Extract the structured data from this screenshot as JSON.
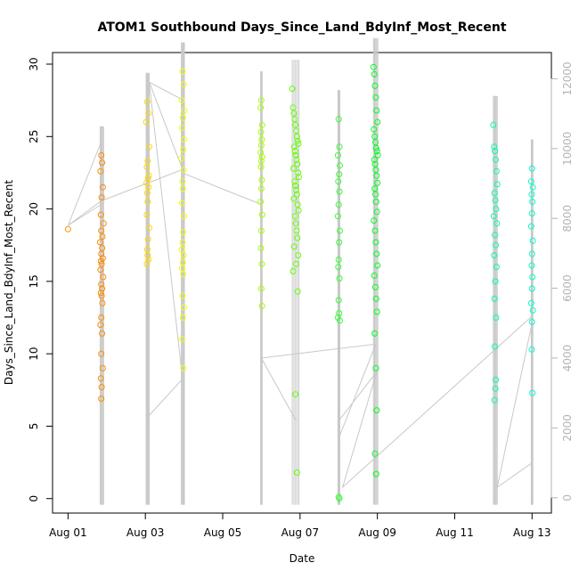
{
  "chart_data": {
    "type": "scatter",
    "title": "ATOM1 Southbound Days_Since_Land_BdyInf_Most_Recent",
    "xlabel": "Date",
    "ylabel": "Days_Since_Land_BdyInf_Most_Recent",
    "x_tick_labels": [
      "Aug 01",
      "Aug 03",
      "Aug 05",
      "Aug 07",
      "Aug 09",
      "Aug 11",
      "Aug 13"
    ],
    "x_tick_values": [
      1,
      3,
      5,
      7,
      9,
      11,
      13
    ],
    "xlim": [
      0.6,
      13.5
    ],
    "y_ticks": [
      0,
      5,
      10,
      15,
      20,
      25,
      30
    ],
    "ylim": [
      -1.0,
      30.8
    ],
    "y2_ticks": [
      0,
      2000,
      4000,
      6000,
      8000,
      10000,
      12000
    ],
    "y2lim": [
      -440,
      12750
    ],
    "grid": false,
    "legend": "none",
    "colors": {
      "aug01": "#ff8c00",
      "aug03": "#ffd700",
      "aug04": "#f2ff00",
      "aug06": "#a8ff00",
      "aug07": "#66ff00",
      "aug08": "#33ff33",
      "aug09": "#00ff22",
      "aug12": "#00ffaa",
      "aug13": "#00ffcc",
      "secondary_trace": "#c8c8c8"
    },
    "series": [
      {
        "x": [
          1.0
        ],
        "color_key": "aug01",
        "values": [
          18.6
        ]
      },
      {
        "x": [
          1.86,
          1.88,
          1.84,
          1.9,
          1.87,
          1.85,
          1.92,
          1.86,
          1.89,
          1.83,
          1.88,
          1.86,
          1.9,
          1.85,
          1.87,
          1.84,
          1.91,
          1.86,
          1.88,
          1.85,
          1.87,
          1.89,
          1.86,
          1.84,
          1.88,
          1.86,
          1.9,
          1.85,
          1.87,
          1.86
        ],
        "color_key": "aug01",
        "values": [
          23.7,
          23.2,
          22.6,
          21.5,
          20.8,
          19.6,
          19.0,
          18.5,
          18.1,
          17.7,
          17.3,
          16.9,
          16.6,
          16.4,
          16.2,
          15.8,
          15.3,
          14.8,
          14.5,
          14.2,
          14.0,
          13.5,
          12.5,
          12.0,
          11.4,
          10.0,
          9.0,
          8.3,
          7.7,
          6.9
        ]
      },
      {
        "x": [
          3.05,
          3.08,
          3.02,
          3.1,
          3.06,
          3.04,
          3.09,
          3.07,
          3.03,
          3.08,
          3.05,
          3.06,
          3.04,
          3.1,
          3.07,
          3.05,
          3.06,
          3.08,
          3.04
        ],
        "color_key": "aug03",
        "values": [
          27.4,
          26.6,
          26.0,
          24.3,
          23.3,
          22.9,
          22.3,
          22.1,
          21.8,
          21.5,
          21.1,
          20.5,
          19.6,
          18.7,
          17.9,
          17.2,
          16.8,
          16.5,
          16.2
        ]
      },
      {
        "x": [
          3.96,
          3.99,
          3.94,
          4.01,
          3.97,
          3.95,
          4.0,
          3.98,
          3.93,
          3.99,
          3.96,
          3.97,
          3.95,
          4.0,
          3.98,
          3.96,
          3.94,
          3.99,
          3.97,
          3.95,
          3.98,
          3.96,
          4.0,
          3.97,
          3.95,
          3.98
        ],
        "color_key": "aug04",
        "values": [
          29.5,
          28.6,
          27.5,
          26.8,
          26.3,
          25.6,
          24.8,
          24.1,
          23.5,
          22.7,
          21.9,
          21.4,
          20.4,
          19.5,
          18.4,
          17.7,
          17.2,
          16.8,
          16.3,
          15.9,
          15.5,
          14.0,
          13.2,
          12.5,
          11.0,
          9.0
        ]
      },
      {
        "x": [
          6.0,
          5.98,
          6.02,
          5.99,
          6.01,
          6.0,
          5.98,
          6.02,
          6.0,
          5.99,
          6.01,
          6.0,
          5.98,
          6.02,
          6.0,
          5.99,
          6.01,
          6.0,
          6.02
        ],
        "color_key": "aug06",
        "values": [
          27.5,
          27.0,
          25.8,
          25.3,
          24.8,
          24.4,
          23.9,
          23.6,
          23.3,
          22.9,
          22.0,
          21.4,
          20.5,
          19.6,
          18.5,
          17.3,
          16.2,
          14.5,
          13.3
        ]
      },
      {
        "x": [
          6.8,
          6.82,
          6.84,
          6.86,
          6.88,
          6.9,
          6.92,
          6.94,
          6.96,
          6.85,
          6.87,
          6.89,
          6.91,
          6.93,
          6.83,
          6.95,
          6.97,
          6.86,
          6.88,
          6.9,
          6.92,
          6.84,
          6.94,
          6.96,
          6.87,
          6.89,
          6.91,
          6.93,
          6.85,
          6.95,
          6.9,
          6.82,
          6.88,
          6.92,
          6.94
        ],
        "color_key": "aug07",
        "values": [
          28.3,
          27.0,
          26.6,
          26.2,
          25.8,
          25.4,
          25.0,
          24.7,
          24.5,
          24.3,
          24.0,
          23.7,
          23.4,
          23.1,
          22.8,
          22.5,
          22.2,
          21.9,
          21.6,
          21.3,
          21.0,
          20.7,
          20.3,
          19.9,
          19.5,
          19.0,
          18.5,
          18.0,
          17.4,
          16.8,
          16.2,
          15.7,
          7.2,
          1.8,
          14.3
        ]
      },
      {
        "x": [
          8.0,
          8.02,
          7.98,
          8.03,
          8.01,
          7.99,
          8.02,
          8.0,
          7.98,
          8.03,
          8.01,
          8.0,
          7.99,
          8.02,
          8.0,
          8.01,
          7.98,
          8.03,
          8.0,
          8.02
        ],
        "color_key": "aug08",
        "values": [
          26.2,
          24.3,
          23.7,
          23.0,
          22.4,
          21.9,
          21.2,
          20.3,
          19.5,
          18.5,
          17.7,
          16.5,
          16.0,
          15.2,
          13.7,
          12.8,
          12.5,
          12.3,
          0.1,
          0.0
        ]
      },
      {
        "x": [
          8.9,
          8.92,
          8.94,
          8.96,
          8.98,
          9.0,
          8.91,
          8.93,
          8.95,
          8.97,
          8.99,
          9.01,
          8.92,
          8.94,
          8.96,
          8.98,
          9.0,
          8.93,
          8.95,
          8.97,
          8.99,
          8.91,
          8.94,
          8.96,
          8.98,
          9.0,
          8.92,
          8.95,
          8.97,
          8.99,
          8.93,
          8.96,
          8.98,
          8.94,
          8.97
        ],
        "color_key": "aug09",
        "values": [
          29.8,
          29.3,
          28.5,
          27.7,
          26.8,
          26.0,
          25.5,
          25.0,
          24.6,
          24.2,
          24.0,
          23.7,
          23.4,
          23.1,
          22.7,
          22.3,
          21.8,
          21.4,
          21.0,
          20.5,
          19.8,
          19.2,
          18.5,
          17.7,
          16.9,
          16.1,
          15.4,
          14.6,
          13.8,
          12.9,
          11.4,
          9.0,
          6.1,
          3.1,
          1.7
        ]
      },
      {
        "x": [
          12.0,
          12.02,
          12.04,
          12.06,
          12.08,
          12.1,
          12.03,
          12.05,
          12.07,
          12.01,
          12.09,
          12.04,
          12.06,
          12.02,
          12.08,
          12.05,
          12.03,
          12.07,
          12.04,
          12.06,
          12.05,
          12.03
        ],
        "color_key": "aug12",
        "values": [
          25.8,
          24.3,
          24.0,
          23.4,
          22.6,
          21.7,
          21.1,
          20.6,
          20.0,
          19.5,
          19.0,
          18.2,
          17.5,
          16.8,
          16.0,
          15.0,
          13.8,
          12.5,
          10.5,
          8.2,
          7.6,
          6.8
        ]
      },
      {
        "x": [
          13.0,
          12.98,
          13.02,
          12.99,
          13.01,
          13.0,
          12.98,
          13.02,
          13.0,
          12.99,
          13.01,
          13.0,
          12.98,
          13.02,
          13.0,
          12.99,
          13.01
        ],
        "color_key": "aug13",
        "values": [
          22.8,
          21.9,
          21.5,
          21.0,
          20.5,
          19.7,
          18.8,
          17.8,
          16.9,
          16.1,
          15.3,
          14.5,
          13.5,
          13.0,
          12.2,
          10.3,
          7.3
        ]
      }
    ],
    "secondary_trace": {
      "x": [
        1.0,
        1.86,
        1.86,
        1.0,
        1.86,
        3.96,
        3.05,
        3.05,
        3.96,
        3.1,
        3.96,
        3.96,
        6.0,
        6.0,
        6.9,
        6.0,
        8.96,
        8.0,
        8.0,
        8.98,
        8.1,
        13.0,
        13.0,
        12.1,
        13.0,
        13.0
      ],
      "y": [
        7800,
        10200,
        8400,
        7800,
        8500,
        9400,
        12050,
        2300,
        3400,
        11900,
        11400,
        9300,
        8400,
        4000,
        2200,
        4000,
        4400,
        1700,
        2200,
        3600,
        300,
        5200,
        5000,
        300,
        1000,
        0
      ]
    }
  }
}
